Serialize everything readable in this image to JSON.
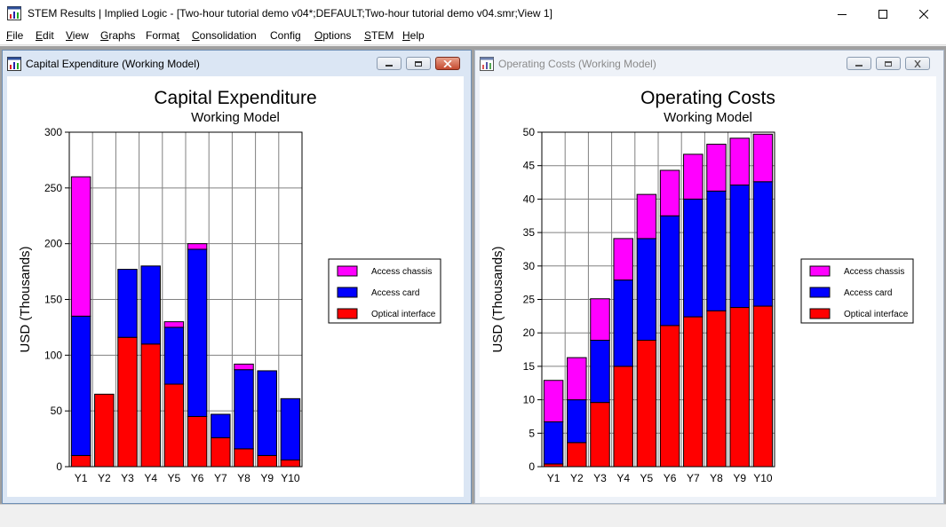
{
  "app": {
    "title": "STEM Results | Implied Logic - [Two-hour tutorial demo v04*;DEFAULT;Two-hour tutorial demo v04.smr;View 1]"
  },
  "menu": [
    {
      "label": "File",
      "u": "F",
      "rest": "ile"
    },
    {
      "label": "Edit",
      "u": "E",
      "rest": "dit"
    },
    {
      "label": "View",
      "u": "V",
      "rest": "iew"
    },
    {
      "label": "Graphs",
      "u": "G",
      "rest": "raphs"
    },
    {
      "label": "Format",
      "pre": "Forma",
      "u": "t",
      "rest": ""
    },
    {
      "label": "Consolidation",
      "u": "C",
      "rest": "onsolidation"
    },
    {
      "label": "Config",
      "pre": "Confi",
      "u": "g",
      "rest": ""
    },
    {
      "label": "Options",
      "u": "O",
      "rest": "ptions"
    },
    {
      "label": "STEM",
      "pre": "",
      "u": "S",
      "rest": "TEM"
    },
    {
      "label": "Help",
      "u": "H",
      "rest": "elp"
    }
  ],
  "windows": [
    {
      "title": "Capital Expenditure (Working Model)",
      "state": "active"
    },
    {
      "title": "Operating Costs (Working Model)",
      "state": "inactive"
    }
  ],
  "colors": {
    "access_chassis": "#ff00ff",
    "access_card": "#0000ff",
    "optical_interface": "#ff0000"
  },
  "chart_data": [
    {
      "type": "bar",
      "stacked": true,
      "title": "Capital Expenditure",
      "subtitle": "Working Model",
      "ylabel": "USD  (Thousands)",
      "xlabel": "",
      "ylim": [
        0,
        300
      ],
      "yticks": [
        0,
        50,
        100,
        150,
        200,
        250,
        300
      ],
      "grid": true,
      "legend": "right",
      "categories": [
        "Y1",
        "Y2",
        "Y3",
        "Y4",
        "Y5",
        "Y6",
        "Y7",
        "Y8",
        "Y9",
        "Y10"
      ],
      "series": [
        {
          "name": "Optical interface",
          "color": "#ff0000",
          "values": [
            10,
            65,
            116,
            110,
            74,
            45,
            26,
            16,
            10,
            6
          ]
        },
        {
          "name": "Access card",
          "color": "#0000ff",
          "values": [
            125,
            0,
            61,
            70,
            51,
            150,
            21,
            71,
            76,
            55
          ]
        },
        {
          "name": "Access chassis",
          "color": "#ff00ff",
          "values": [
            125,
            0,
            0,
            0,
            5,
            5,
            0,
            5,
            0,
            0
          ]
        }
      ],
      "legend_order": [
        "Access chassis",
        "Access card",
        "Optical interface"
      ]
    },
    {
      "type": "bar",
      "stacked": true,
      "title": "Operating Costs",
      "subtitle": "Working Model",
      "ylabel": "USD  (Thousands)",
      "xlabel": "",
      "ylim": [
        0,
        50
      ],
      "yticks": [
        0,
        5,
        10,
        15,
        20,
        25,
        30,
        35,
        40,
        45,
        50
      ],
      "grid": true,
      "legend": "right",
      "categories": [
        "Y1",
        "Y2",
        "Y3",
        "Y4",
        "Y5",
        "Y6",
        "Y7",
        "Y8",
        "Y9",
        "Y10"
      ],
      "series": [
        {
          "name": "Optical interface",
          "color": "#ff0000",
          "values": [
            0.4,
            3.6,
            9.6,
            15.0,
            18.9,
            21.1,
            22.4,
            23.3,
            23.8,
            24.0
          ]
        },
        {
          "name": "Access card",
          "color": "#0000ff",
          "values": [
            6.3,
            6.4,
            9.3,
            12.9,
            15.2,
            16.4,
            17.6,
            17.9,
            18.3,
            18.6
          ]
        },
        {
          "name": "Access chassis",
          "color": "#ff00ff",
          "values": [
            6.2,
            6.3,
            6.2,
            6.2,
            6.6,
            6.8,
            6.7,
            7.0,
            7.0,
            7.1
          ]
        }
      ],
      "legend_order": [
        "Access chassis",
        "Access card",
        "Optical interface"
      ]
    }
  ]
}
